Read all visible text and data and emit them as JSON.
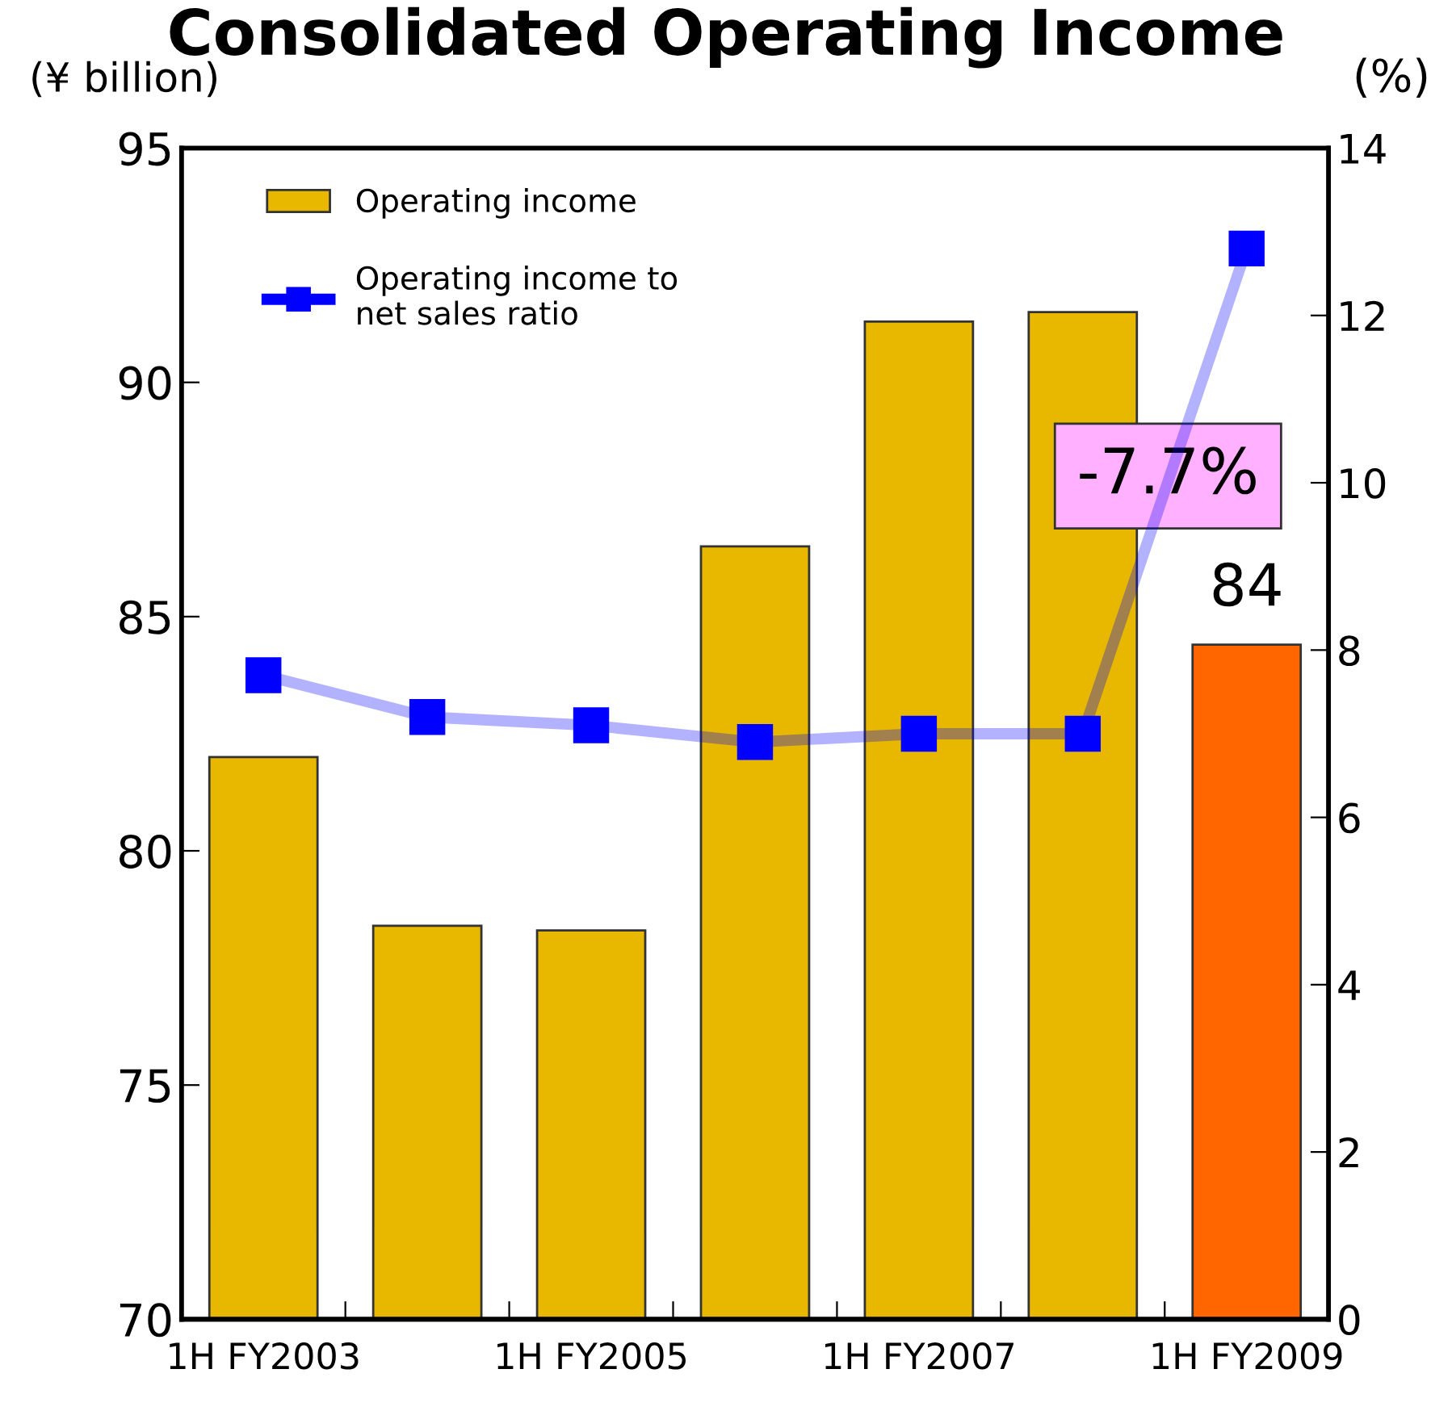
{
  "chart_data": {
    "type": "bar",
    "title": "Consolidated Operating Income",
    "ylabel": "(¥ billion)",
    "y2label": "(%)",
    "categories": [
      "1H FY2003",
      null,
      "1H FY2005",
      null,
      "1H FY2007",
      null,
      "1H FY2009"
    ],
    "series": [
      {
        "name": "Operating income",
        "colors": [
          "#e8b800",
          "#e8b800",
          "#e8b800",
          "#e8b800",
          "#e8b800",
          "#e8b800",
          "#ff6600"
        ],
        "values": [
          82.0,
          78.4,
          78.3,
          86.5,
          91.3,
          91.5,
          84.4
        ],
        "value_labels": [
          null,
          null,
          null,
          null,
          null,
          null,
          "84"
        ]
      },
      {
        "type": "line",
        "name": "Operating income to\nnet sales ratio",
        "axis": "y2",
        "color": "#0000ff",
        "marker": "square",
        "values": [
          7.7,
          7.2,
          7.1,
          6.9,
          7.0,
          7.0,
          12.8
        ]
      }
    ],
    "ylim": [
      70,
      95
    ],
    "yticks": [
      70,
      75,
      80,
      85,
      90,
      95
    ],
    "y2lim": [
      0,
      14
    ],
    "y2ticks": [
      0,
      2,
      4,
      6,
      8,
      10,
      12,
      14
    ],
    "annotations": [
      "-7.7%"
    ],
    "legend": "top left",
    "grid": false
  }
}
